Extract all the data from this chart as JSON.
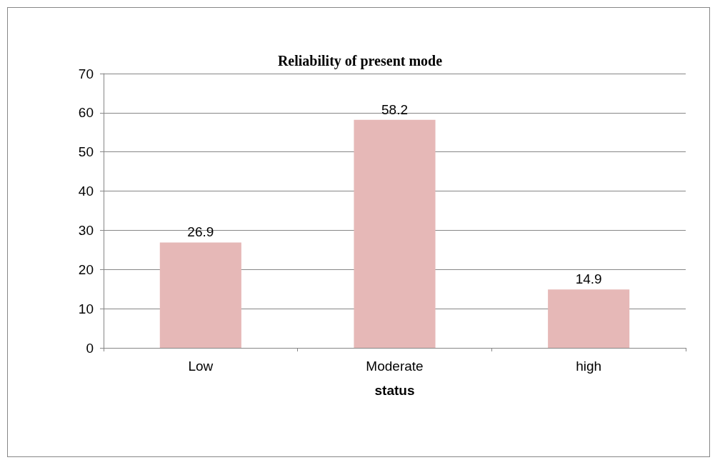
{
  "chart_data": {
    "type": "bar",
    "title": "Reliability of present mode",
    "xlabel": "status",
    "categories": [
      "Low",
      "Moderate",
      "high"
    ],
    "values": [
      26.9,
      58.2,
      14.9
    ],
    "color": "#e6b8b7",
    "ylim": [
      0,
      70
    ],
    "yticks": [
      0,
      10,
      20,
      30,
      40,
      50,
      60,
      70
    ],
    "grid": "y",
    "data_labels": true
  }
}
